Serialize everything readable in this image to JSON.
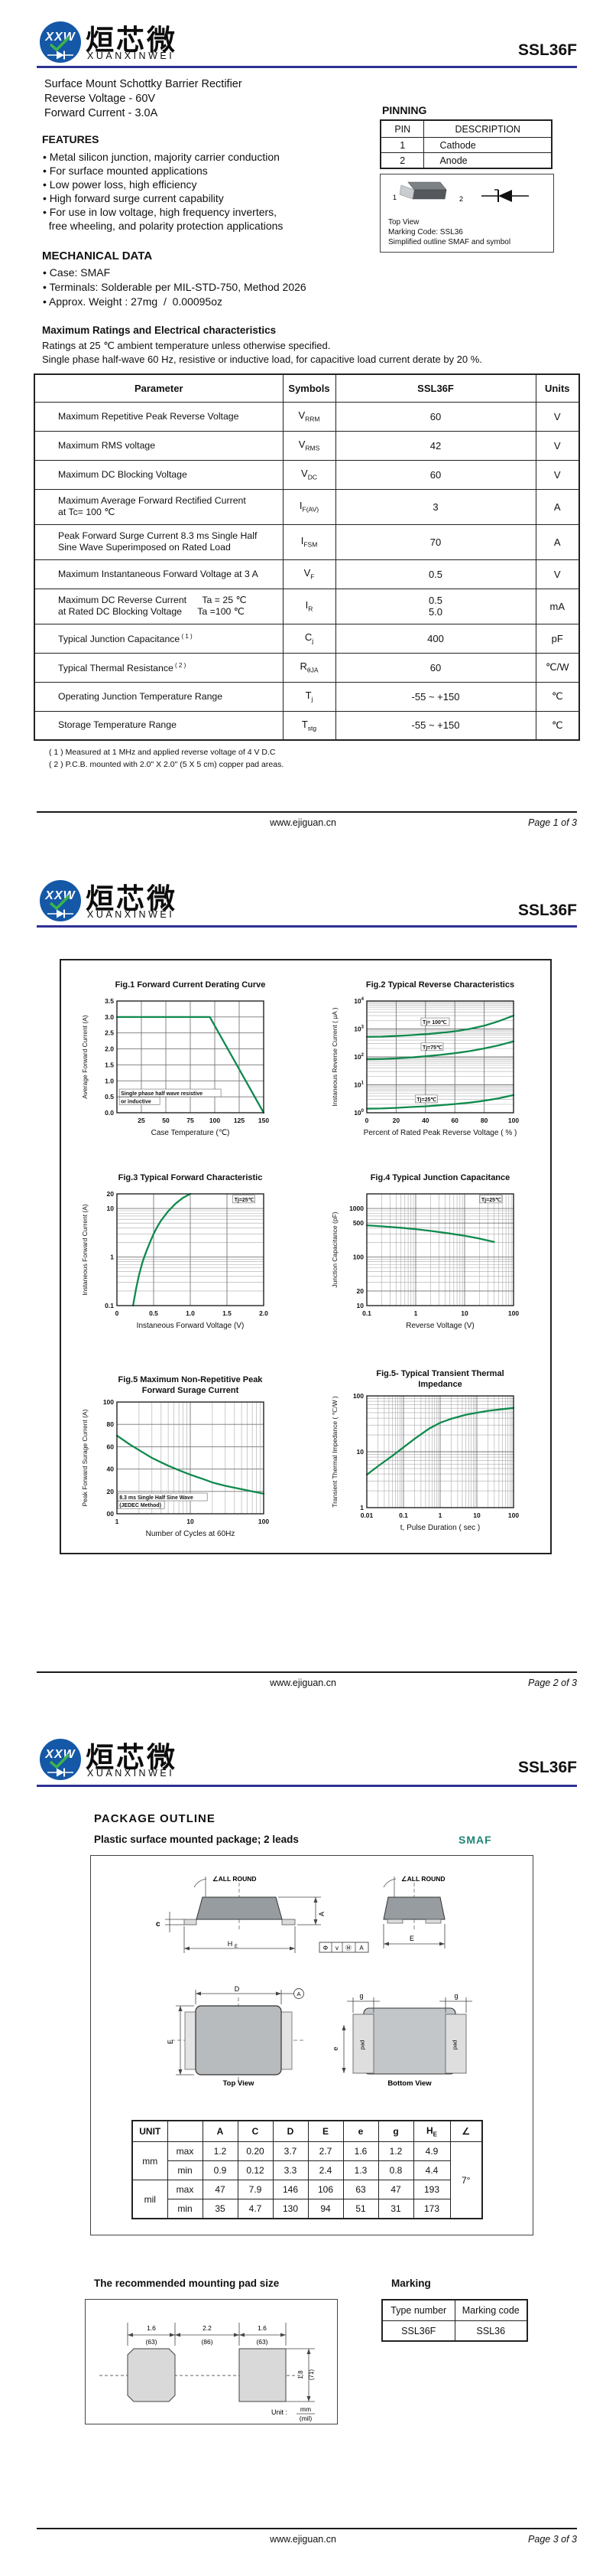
{
  "brand": {
    "abbr": "XXW",
    "cn": "烜芯微",
    "en": "XUANXINWEI",
    "part": "SSL36F"
  },
  "colors": {
    "rule": "#2e3192",
    "curve": "#108a4d",
    "smaf": "#1f8575",
    "logo_blue": "#1558a7",
    "logo_green": "#3bb44a",
    "grid": "#8c8c8c"
  },
  "footer": {
    "site": "www.ejiguan.cn",
    "pages": [
      "Page 1 of 3",
      "Page 2 of 3",
      "Page 3 of 3"
    ]
  },
  "page1": {
    "desc_lines": [
      "Surface Mount Schottky Barrier Rectifier",
      "Reverse Voltage - 60V",
      "Forward Current - 3.0A"
    ],
    "features_title": "FEATURES",
    "features": [
      "• Metal silicon junction, majority carrier conduction",
      "• For surface mounted applications",
      "• Low power loss, high efficiency",
      "• High forward surge current capability",
      "• For use in low voltage, high frequency inverters,",
      "  free wheeling, and polarity protection applications"
    ],
    "pinning": {
      "title": "PINNING",
      "headers": [
        "PIN",
        "DESCRIPTION"
      ],
      "rows": [
        [
          "1",
          "Cathode"
        ],
        [
          "2",
          "Anode"
        ]
      ]
    },
    "outline_box": {
      "pin1": "1",
      "pin2": "2",
      "caption_lines": [
        "Top View",
        "Marking Code: SSL36",
        "Simplified outline SMAF and symbol"
      ]
    },
    "mech_title": "MECHANICAL DATA",
    "mech": [
      "• Case: SMAF",
      "• Terminals: Solderable per MIL-STD-750, Method 2026",
      "• Approx. Weight : 27mg  /  0.00095oz"
    ],
    "ratings_title": "Maximum Ratings and Electrical characteristics",
    "ratings_notes": [
      "Ratings at 25 ℃ ambient temperature unless otherwise specified.",
      "Single phase half-wave 60 Hz, resistive or inductive load, for capacitive load current derate by 20 %."
    ],
    "table": {
      "headers": [
        "Parameter",
        "Symbols",
        "SSL36F",
        "Units"
      ],
      "rows": [
        {
          "param": [
            "Maximum Repetitive Peak Reverse Voltage"
          ],
          "sym": "V",
          "sub": "RRM",
          "val": [
            "60"
          ],
          "unit": "V"
        },
        {
          "param": [
            "Maximum RMS voltage"
          ],
          "sym": "V",
          "sub": "RMS",
          "val": [
            "42"
          ],
          "unit": "V"
        },
        {
          "param": [
            "Maximum DC Blocking Voltage"
          ],
          "sym": "V",
          "sub": "DC",
          "val": [
            "60"
          ],
          "unit": "V"
        },
        {
          "param": [
            "Maximum Average Forward Rectified Current",
            "at Tc= 100 ℃"
          ],
          "sym": "I",
          "sub": "F(AV)",
          "val": [
            "3"
          ],
          "unit": "A"
        },
        {
          "param": [
            "Peak Forward Surge Current 8.3 ms Single Half",
            "Sine Wave Superimposed on Rated Load"
          ],
          "sym": "I",
          "sub": "FSM",
          "val": [
            "70"
          ],
          "unit": "A"
        },
        {
          "param": [
            "Maximum Instantaneous Forward Voltage at 3 A"
          ],
          "sym": "V",
          "sub": "F",
          "val": [
            "0.5"
          ],
          "unit": "V"
        },
        {
          "param": [
            "Maximum DC Reverse Current      Ta = 25 ℃",
            "at Rated DC Blocking Voltage      Ta =100 ℃"
          ],
          "sym": "I",
          "sub": "R",
          "val": [
            "0.5",
            "5.0"
          ],
          "unit": "mA"
        },
        {
          "param": [
            "Typical Junction Capacitance"
          ],
          "sup": "( 1 )",
          "sym": "C",
          "sub": "j",
          "val": [
            "400"
          ],
          "unit": "pF"
        },
        {
          "param": [
            "Typical Thermal Resistance"
          ],
          "sup": "( 2 )",
          "sym": "R",
          "sub": "θJA",
          "val": [
            "60"
          ],
          "unit": "℃/W"
        },
        {
          "param": [
            "Operating Junction Temperature Range"
          ],
          "sym": "T",
          "sub": "j",
          "val": [
            "-55 ~ +150"
          ],
          "unit": "℃"
        },
        {
          "param": [
            "Storage Temperature Range"
          ],
          "sym": "T",
          "sub": "stg",
          "val": [
            "-55 ~ +150"
          ],
          "unit": "℃"
        }
      ],
      "footnotes": [
        "( 1 ) Measured at 1 MHz and applied reverse voltage of 4 V D.C",
        "( 2 ) P.C.B. mounted with 2.0\" X 2.0\" (5 X 5 cm) copper pad areas."
      ]
    }
  },
  "chart_data": [
    {
      "id": "fig1",
      "type": "line",
      "title": [
        "Fig.1  Forward Current Derating Curve"
      ],
      "xlabel": "Case  Temperature (℃)",
      "ylabel": "Average Forward Current (A)",
      "xscale": "linear",
      "yscale": "linear",
      "xlim": [
        0,
        150
      ],
      "ylim": [
        0,
        3.5
      ],
      "xticks": [
        [
          25,
          "25"
        ],
        [
          50,
          "50"
        ],
        [
          75,
          "75"
        ],
        [
          100,
          "100"
        ],
        [
          125,
          "125"
        ],
        [
          150,
          "150"
        ]
      ],
      "yticks": [
        [
          0,
          "0.0"
        ],
        [
          0.5,
          "0.5"
        ],
        [
          1,
          "1.0"
        ],
        [
          1.5,
          "1.5"
        ],
        [
          2,
          "2.0"
        ],
        [
          2.5,
          "2.5"
        ],
        [
          3,
          "3.0"
        ],
        [
          3.5,
          "3.5"
        ]
      ],
      "series": [
        {
          "name": "derating",
          "points": [
            [
              0,
              3
            ],
            [
              95,
              3
            ],
            [
              150,
              0
            ]
          ]
        }
      ],
      "annotations": [
        {
          "x": 4,
          "y": 0.55,
          "t": "Single phase half wave resistive"
        },
        {
          "x": 4,
          "y": 0.3,
          "t": "or inductive"
        }
      ]
    },
    {
      "id": "fig2",
      "type": "line",
      "title": [
        "Fig.2  Typical Reverse Characteristics"
      ],
      "xlabel": "Percent of Rated Peak Reverse Voltage ( % )",
      "ylabel": "Instaneous Reverse Current ( μA )",
      "xscale": "linear",
      "yscale": "log",
      "xlim": [
        0,
        100
      ],
      "ylim": [
        1,
        10000
      ],
      "xticks": [
        [
          0,
          "0"
        ],
        [
          20,
          "20"
        ],
        [
          40,
          "40"
        ],
        [
          60,
          "60"
        ],
        [
          80,
          "80"
        ],
        [
          100,
          "100"
        ]
      ],
      "yticks": [
        [
          1,
          "10^0"
        ],
        [
          10,
          "10^1"
        ],
        [
          100,
          "10^2"
        ],
        [
          1000,
          "10^3"
        ],
        [
          10000,
          "10^4"
        ]
      ],
      "series": [
        {
          "name": "Tj= 100℃",
          "points": [
            [
              0,
              520
            ],
            [
              10,
              530
            ],
            [
              20,
              560
            ],
            [
              30,
              600
            ],
            [
              40,
              650
            ],
            [
              50,
              720
            ],
            [
              60,
              820
            ],
            [
              70,
              1000
            ],
            [
              80,
              1300
            ],
            [
              90,
              1900
            ],
            [
              100,
              3000
            ]
          ]
        },
        {
          "name": "Tj=75℃",
          "points": [
            [
              0,
              82
            ],
            [
              10,
              84
            ],
            [
              20,
              88
            ],
            [
              30,
              95
            ],
            [
              40,
              105
            ],
            [
              50,
              118
            ],
            [
              60,
              135
            ],
            [
              70,
              160
            ],
            [
              80,
              200
            ],
            [
              90,
              260
            ],
            [
              100,
              360
            ]
          ]
        },
        {
          "name": "Tj=25℃",
          "points": [
            [
              0,
              1.4
            ],
            [
              10,
              1.42
            ],
            [
              20,
              1.5
            ],
            [
              30,
              1.6
            ],
            [
              40,
              1.7
            ],
            [
              50,
              1.85
            ],
            [
              60,
              2.05
            ],
            [
              70,
              2.3
            ],
            [
              80,
              2.7
            ],
            [
              90,
              3.3
            ],
            [
              100,
              4.3
            ]
          ]
        }
      ],
      "annotations": [
        {
          "x": 38,
          "y": 1500,
          "t": "Tj= 100℃"
        },
        {
          "x": 38,
          "y": 190,
          "t": "Tj=75℃"
        },
        {
          "x": 34,
          "y": 2.6,
          "t": "Tj=25℃"
        }
      ]
    },
    {
      "id": "fig3",
      "type": "line",
      "title": [
        "Fig.3  Typical Forward Characteristic"
      ],
      "xlabel": "Instaneous Forward Voltage (V)",
      "ylabel": "Instaneous Forward Current  (A)",
      "xscale": "linear",
      "yscale": "log",
      "xlim": [
        0,
        2
      ],
      "ylim": [
        0.1,
        20
      ],
      "xticks": [
        [
          0,
          "0"
        ],
        [
          0.5,
          "0.5"
        ],
        [
          1,
          "1.0"
        ],
        [
          1.5,
          "1.5"
        ],
        [
          2,
          "2.0"
        ]
      ],
      "yticks": [
        [
          0.1,
          "0.1"
        ],
        [
          1,
          "1"
        ],
        [
          10,
          "10"
        ],
        [
          20,
          "20"
        ]
      ],
      "series": [
        {
          "name": "Tj=25℃",
          "points": [
            [
              0.22,
              0.1
            ],
            [
              0.26,
              0.22
            ],
            [
              0.3,
              0.42
            ],
            [
              0.35,
              0.8
            ],
            [
              0.4,
              1.3
            ],
            [
              0.45,
              2.0
            ],
            [
              0.5,
              3.0
            ],
            [
              0.55,
              4.2
            ],
            [
              0.6,
              5.6
            ],
            [
              0.7,
              8.8
            ],
            [
              0.8,
              12.6
            ],
            [
              0.9,
              16.6
            ],
            [
              1.0,
              20
            ]
          ]
        }
      ],
      "annotations": [
        {
          "x": 1.6,
          "y": 14,
          "t": "Tj=25℃"
        }
      ]
    },
    {
      "id": "fig4",
      "type": "line",
      "title": [
        "Fig.4  Typical Junction Capacitance"
      ],
      "xlabel": "Reverse  Voltage (V)",
      "ylabel": "Junction Capacitance (pF)",
      "xscale": "log",
      "yscale": "log",
      "xlim": [
        0.1,
        100
      ],
      "ylim": [
        10,
        2000
      ],
      "xticks": [
        [
          0.1,
          "0.1"
        ],
        [
          1,
          "1"
        ],
        [
          10,
          "10"
        ],
        [
          100,
          "100"
        ]
      ],
      "yticks": [
        [
          10,
          "10"
        ],
        [
          20,
          "20"
        ],
        [
          100,
          "100"
        ],
        [
          500,
          "500"
        ],
        [
          1000,
          "1000"
        ]
      ],
      "series": [
        {
          "name": "Tj=25℃",
          "points": [
            [
              0.1,
              450
            ],
            [
              0.2,
              430
            ],
            [
              0.5,
              400
            ],
            [
              1,
              375
            ],
            [
              2,
              345
            ],
            [
              5,
              305
            ],
            [
              10,
              275
            ],
            [
              20,
              240
            ],
            [
              40,
              205
            ]
          ]
        }
      ],
      "annotations": [
        {
          "x": 22,
          "y": 1400,
          "t": "Tj=25℃"
        }
      ]
    },
    {
      "id": "fig5",
      "type": "line",
      "title": [
        "Fig.5  Maximum Non-Repetitive Peak",
        "Forward Surage Current"
      ],
      "xlabel": "Number of Cycles at 60Hz",
      "ylabel": "Peak Forward Surage Current (A)",
      "xscale": "log",
      "yscale": "linear",
      "xlim": [
        1,
        100
      ],
      "ylim": [
        0,
        100
      ],
      "xticks": [
        [
          1,
          "1"
        ],
        [
          10,
          "10"
        ],
        [
          100,
          "100"
        ]
      ],
      "yticks": [
        [
          0,
          "00"
        ],
        [
          20,
          "20"
        ],
        [
          40,
          "40"
        ],
        [
          60,
          "60"
        ],
        [
          80,
          "80"
        ],
        [
          100,
          "100"
        ]
      ],
      "series": [
        {
          "name": "surge",
          "points": [
            [
              1,
              70
            ],
            [
              1.5,
              62
            ],
            [
              2,
              57
            ],
            [
              3,
              50
            ],
            [
              4,
              46
            ],
            [
              5,
              43
            ],
            [
              7,
              39
            ],
            [
              10,
              35
            ],
            [
              15,
              31
            ],
            [
              20,
              28
            ],
            [
              30,
              25
            ],
            [
              50,
              22
            ],
            [
              70,
              20
            ],
            [
              100,
              18
            ]
          ]
        }
      ],
      "annotations": [
        {
          "x": 1.08,
          "y": 13,
          "t": "8.3 ms Single Half Sine Wave"
        },
        {
          "x": 1.08,
          "y": 6,
          "t": "(JEDEC Method)"
        }
      ]
    },
    {
      "id": "fig6",
      "type": "line",
      "title": [
        "Fig.5- Typical Transient Thermal Impedance"
      ],
      "xlabel": "t, Pulse Duration ( sec )",
      "ylabel": "Transient Thermal Impedance ( ℃/W )",
      "xscale": "log",
      "yscale": "log",
      "xlim": [
        0.01,
        100
      ],
      "ylim": [
        1,
        100
      ],
      "xticks": [
        [
          0.01,
          "0.01"
        ],
        [
          0.1,
          "0.1"
        ],
        [
          1,
          "1"
        ],
        [
          10,
          "10"
        ],
        [
          100,
          "100"
        ]
      ],
      "yticks": [
        [
          1,
          "1"
        ],
        [
          10,
          "10"
        ],
        [
          100,
          "100"
        ]
      ],
      "series": [
        {
          "name": "zth",
          "points": [
            [
              0.01,
              3.9
            ],
            [
              0.02,
              5.5
            ],
            [
              0.05,
              8.5
            ],
            [
              0.1,
              12
            ],
            [
              0.2,
              17
            ],
            [
              0.5,
              26
            ],
            [
              1,
              33
            ],
            [
              2,
              39
            ],
            [
              5,
              46
            ],
            [
              10,
              50
            ],
            [
              20,
              54
            ],
            [
              50,
              58
            ],
            [
              100,
              61
            ]
          ]
        }
      ],
      "annotations": []
    }
  ],
  "page3": {
    "outline_title": "PACKAGE  OUTLINE",
    "outline_sub": "Plastic surface mounted package; 2 leads",
    "pkg_name": "SMAF",
    "drawing": {
      "allround": "∠ALL ROUND",
      "dim_c": "c",
      "dim_a": "A",
      "dim_he": "H",
      "dim_he_sub": "E",
      "dim_e": "E",
      "dim_d": "D",
      "dim_g": "g",
      "dim_e3": "e",
      "datum": [
        "Φ",
        "v",
        "Ⓜ",
        "A"
      ],
      "datum_a": "A",
      "pad": "pad",
      "top_caption": "Top View",
      "bottom_caption": "Bottom View"
    },
    "dim_table": {
      "col_headers": [
        "UNIT",
        "",
        "A",
        "C",
        "D",
        "E",
        "e",
        "g",
        "H_E",
        "∠"
      ],
      "unit_groups": [
        "mm",
        "mil"
      ],
      "row_labels": [
        "max",
        "min",
        "max",
        "min"
      ],
      "rows": [
        [
          "1.2",
          "0.20",
          "3.7",
          "2.7",
          "1.6",
          "1.2",
          "4.9"
        ],
        [
          "0.9",
          "0.12",
          "3.3",
          "2.4",
          "1.3",
          "0.8",
          "4.4"
        ],
        [
          "47",
          "7.9",
          "146",
          "106",
          "63",
          "47",
          "193"
        ],
        [
          "35",
          "4.7",
          "130",
          "94",
          "51",
          "31",
          "173"
        ]
      ],
      "angle": "7°"
    },
    "pad_title": "The recommended mounting pad size",
    "pad_dims": {
      "top": [
        [
          "1.6",
          "(63)"
        ],
        [
          "2.2",
          "(86)"
        ],
        [
          "1.6",
          "(63)"
        ]
      ],
      "side": [
        "1.8",
        "(71)"
      ],
      "unit_label": "Unit :",
      "unit_num": "mm",
      "unit_den": "(mil)"
    },
    "marking_title": "Marking",
    "marking_table": {
      "headers": [
        "Type number",
        "Marking code"
      ],
      "rows": [
        [
          "SSL36F",
          "SSL36"
        ]
      ]
    }
  }
}
